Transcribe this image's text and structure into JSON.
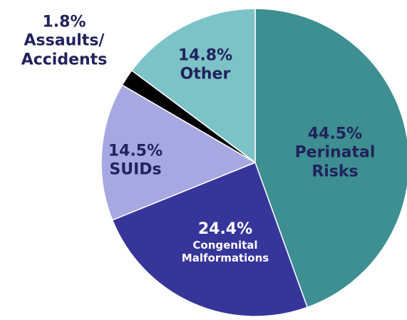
{
  "chart_data": {
    "type": "pie",
    "categories": [
      "Perinatal Risks",
      "Congenital Malformations",
      "SUIDs",
      "Assaults/ Accidents",
      "Other"
    ],
    "values": [
      44.5,
      24.4,
      14.5,
      1.8,
      14.8
    ],
    "value_labels": [
      "44.5%",
      "24.4%",
      "14.5%",
      "1.8%",
      "14.8%"
    ],
    "colors": [
      "#3d8f91",
      "#35359a",
      "#a7a7e1",
      "#000000",
      "#7cc3c8"
    ]
  }
}
